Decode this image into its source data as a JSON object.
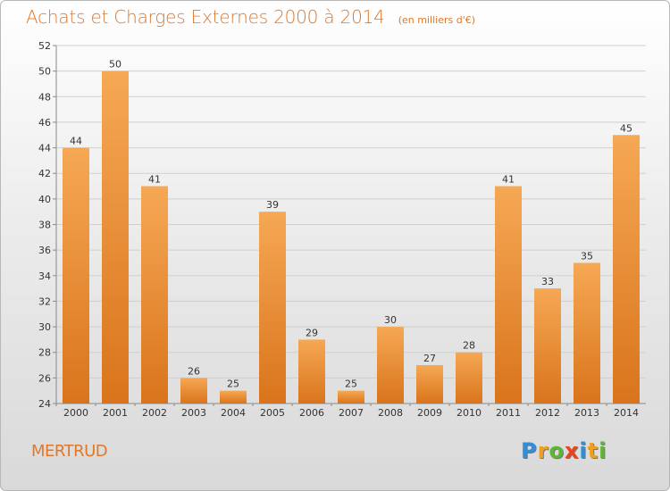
{
  "header": {
    "title": "Achats et Charges Externes 2000 à 2014",
    "subtitle": "(en milliers d'€)"
  },
  "footer": {
    "commune": "MERTRUD",
    "logo": [
      "P",
      "r",
      "o",
      "x",
      "i",
      "t",
      "i"
    ],
    "logo_colors": [
      "#2f8fd8",
      "#f0a020",
      "#5cb832",
      "#e8451e",
      "#2f8fd8",
      "#f0a020",
      "#5cb832"
    ]
  },
  "colors": {
    "bar_light": "#f6a854",
    "bar_dark": "#d9741c",
    "title": "#e0782a",
    "grid": "#cfcfcf",
    "axis": "#888888",
    "text": "#333333"
  },
  "chart_data": {
    "type": "bar",
    "title": "Achats et Charges Externes 2000 à 2014",
    "subtitle": "(en milliers d'€)",
    "categories": [
      "2000",
      "2001",
      "2002",
      "2003",
      "2004",
      "2005",
      "2006",
      "2007",
      "2008",
      "2009",
      "2010",
      "2011",
      "2012",
      "2013",
      "2014"
    ],
    "values": [
      44,
      50,
      41,
      26,
      25,
      39,
      29,
      25,
      30,
      27,
      28,
      41,
      33,
      35,
      45
    ],
    "ylim": [
      24,
      52
    ],
    "yticks": [
      24,
      26,
      28,
      30,
      32,
      34,
      36,
      38,
      40,
      42,
      44,
      46,
      48,
      50,
      52
    ],
    "grid": true,
    "data_labels": true
  }
}
